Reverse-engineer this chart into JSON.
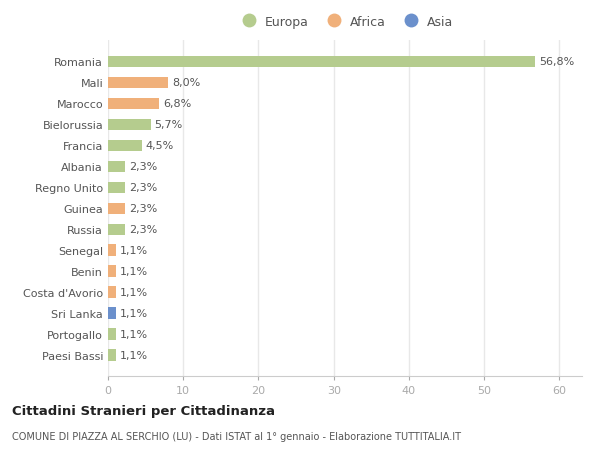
{
  "countries": [
    "Romania",
    "Mali",
    "Marocco",
    "Bielorussia",
    "Francia",
    "Albania",
    "Regno Unito",
    "Guinea",
    "Russia",
    "Senegal",
    "Benin",
    "Costa d'Avorio",
    "Sri Lanka",
    "Portogallo",
    "Paesi Bassi"
  ],
  "values": [
    56.8,
    8.0,
    6.8,
    5.7,
    4.5,
    2.3,
    2.3,
    2.3,
    2.3,
    1.1,
    1.1,
    1.1,
    1.1,
    1.1,
    1.1
  ],
  "labels": [
    "56,8%",
    "8,0%",
    "6,8%",
    "5,7%",
    "4,5%",
    "2,3%",
    "2,3%",
    "2,3%",
    "2,3%",
    "1,1%",
    "1,1%",
    "1,1%",
    "1,1%",
    "1,1%",
    "1,1%"
  ],
  "continents": [
    "Europa",
    "Africa",
    "Africa",
    "Europa",
    "Europa",
    "Europa",
    "Europa",
    "Africa",
    "Europa",
    "Africa",
    "Africa",
    "Africa",
    "Asia",
    "Europa",
    "Europa"
  ],
  "colors": {
    "Europa": "#b5cc8e",
    "Africa": "#f0b07a",
    "Asia": "#6b90cc"
  },
  "xlim": [
    0,
    63
  ],
  "xticks": [
    0,
    10,
    20,
    30,
    40,
    50,
    60
  ],
  "title": "Cittadini Stranieri per Cittadinanza",
  "subtitle": "COMUNE DI PIAZZA AL SERCHIO (LU) - Dati ISTAT al 1° gennaio - Elaborazione TUTTITALIA.IT",
  "background_color": "#ffffff",
  "bar_height": 0.55,
  "grid_color": "#e8e8e8",
  "label_fontsize": 8,
  "tick_fontsize": 8,
  "legend_labels": [
    "Europa",
    "Africa",
    "Asia"
  ]
}
